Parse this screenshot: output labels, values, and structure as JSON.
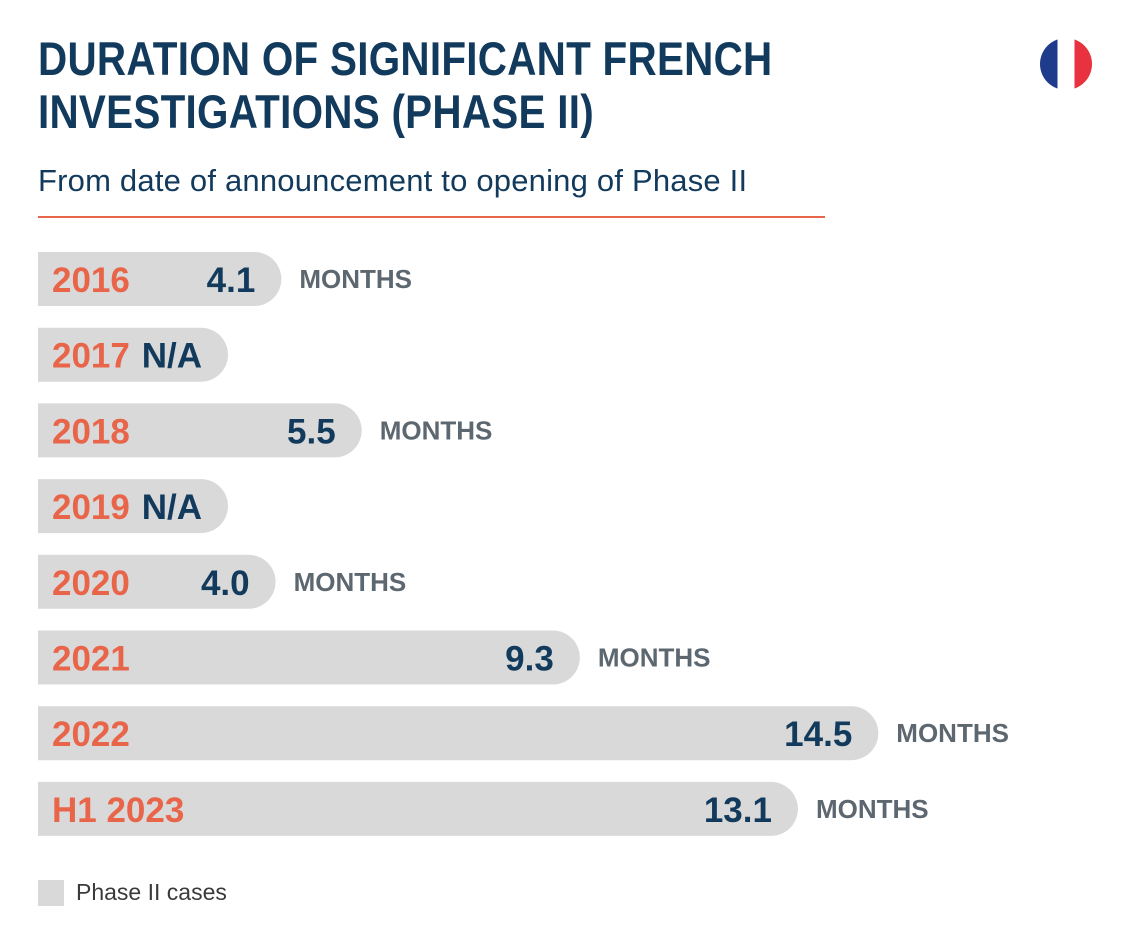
{
  "title_lines": [
    "DURATION OF SIGNIFICANT FRENCH",
    "INVESTIGATIONS (PHASE II)"
  ],
  "subtitle": "From date of announcement to opening of Phase II",
  "unit_label": "MONTHS",
  "legend": {
    "label": "Phase II cases"
  },
  "colors": {
    "title": "#123a5c",
    "category": "#e8654a",
    "value": "#123a5c",
    "unit": "#5d6770",
    "bar": "#d9d9d9",
    "rule": "#e8654a",
    "flag_blue": "#1f3b8c",
    "flag_white": "#ffffff",
    "flag_red": "#e8323f"
  },
  "chart_data": {
    "type": "bar",
    "orientation": "horizontal",
    "categories": [
      "2016",
      "2017",
      "2018",
      "2019",
      "2020",
      "2021",
      "2022",
      "H1 2023"
    ],
    "values": [
      4.1,
      null,
      5.5,
      null,
      4.0,
      9.3,
      14.5,
      13.1
    ],
    "value_labels": [
      "4.1",
      "N/A",
      "5.5",
      "N/A",
      "4.0",
      "9.3",
      "14.5",
      "13.1"
    ],
    "series": [
      {
        "name": "Phase II cases",
        "values": [
          4.1,
          null,
          5.5,
          null,
          4.0,
          9.3,
          14.5,
          13.1
        ]
      }
    ],
    "xlabel": "",
    "ylabel": "",
    "grid": false,
    "legend": "bottom-left"
  }
}
